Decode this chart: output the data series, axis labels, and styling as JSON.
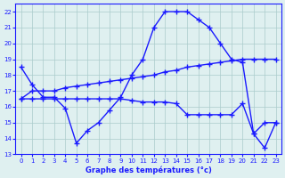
{
  "line1_x": [
    0,
    1,
    2,
    3,
    4,
    5,
    6,
    7,
    8,
    9,
    10,
    11,
    12,
    13,
    14,
    15,
    16,
    17,
    18,
    19,
    20,
    21,
    22,
    23
  ],
  "line1_y": [
    18.5,
    17.4,
    16.6,
    16.6,
    15.9,
    13.7,
    14.5,
    15.0,
    15.8,
    16.6,
    18.0,
    19.0,
    21.0,
    22.0,
    22.0,
    22.0,
    21.5,
    21.0,
    20.0,
    19.0,
    18.8,
    14.3,
    15.0,
    15.0
  ],
  "line2_x": [
    0,
    1,
    2,
    3,
    4,
    5,
    6,
    7,
    8,
    9,
    10,
    11,
    12,
    13,
    14,
    15,
    16,
    17,
    18,
    19,
    20,
    21,
    22,
    23
  ],
  "line2_y": [
    16.5,
    17.0,
    17.0,
    17.0,
    17.2,
    17.3,
    17.4,
    17.5,
    17.6,
    17.7,
    17.8,
    17.9,
    18.0,
    18.2,
    18.3,
    18.5,
    18.6,
    18.7,
    18.8,
    18.9,
    19.0,
    19.0,
    19.0,
    19.0
  ],
  "line3_x": [
    0,
    1,
    2,
    3,
    4,
    5,
    6,
    7,
    8,
    9,
    10,
    11,
    12,
    13,
    14,
    15,
    16,
    17,
    18,
    19,
    20,
    21,
    22,
    23
  ],
  "line3_y": [
    16.5,
    16.5,
    16.5,
    16.5,
    16.5,
    16.5,
    16.5,
    16.5,
    16.5,
    16.5,
    16.4,
    16.3,
    16.3,
    16.3,
    16.2,
    15.5,
    15.5,
    15.5,
    15.5,
    15.5,
    16.2,
    14.3,
    13.4,
    15.0
  ],
  "line_color": "#1a1aff",
  "bg_color": "#dff0f0",
  "grid_color": "#aacccc",
  "xlabel": "Graphe des températures (°c)",
  "xlim": [
    -0.5,
    23.5
  ],
  "ylim": [
    13,
    22.5
  ],
  "yticks": [
    13,
    14,
    15,
    16,
    17,
    18,
    19,
    20,
    21,
    22
  ],
  "xticks": [
    0,
    1,
    2,
    3,
    4,
    5,
    6,
    7,
    8,
    9,
    10,
    11,
    12,
    13,
    14,
    15,
    16,
    17,
    18,
    19,
    20,
    21,
    22,
    23
  ]
}
